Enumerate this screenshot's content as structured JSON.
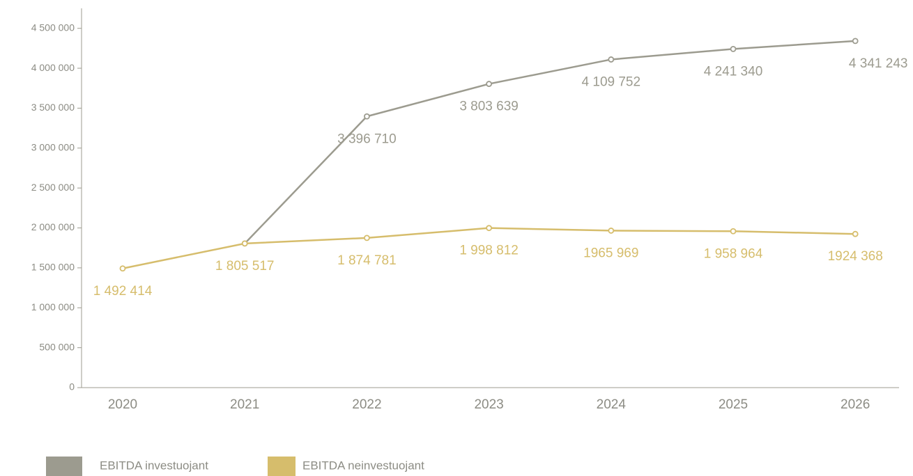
{
  "chart_data": {
    "type": "line",
    "categories": [
      "2020",
      "2021",
      "2022",
      "2023",
      "2024",
      "2025",
      "2026"
    ],
    "series": [
      {
        "name": "EBITDA investuojant",
        "color": "#9c9b8f",
        "values": [
          null,
          1805517,
          3396710,
          3803639,
          4109752,
          4241340,
          4341243
        ],
        "value_labels": [
          null,
          null,
          "3 396 710",
          "3 803 639",
          "4 109 752",
          "4 241 340",
          "4 341 243"
        ]
      },
      {
        "name": "EBITDA neinvestuojant",
        "color": "#d6bd6c",
        "values": [
          1492414,
          1805517,
          1874781,
          1998812,
          1965969,
          1958964,
          1924368
        ],
        "value_labels": [
          "1 492 414",
          "1 805 517",
          "1 874 781",
          "1 998 812",
          "1965 969",
          "1 958 964",
          "1924 368"
        ]
      }
    ],
    "ylim": [
      0,
      4750000
    ],
    "yticks": [
      0,
      {
        "value": 500000,
        "label": "500 000"
      },
      {
        "value": 1000000,
        "label": "1 000 000"
      },
      {
        "value": 1500000,
        "label": "1 500 000"
      },
      {
        "value": 2000000,
        "label": "2 000 000"
      },
      {
        "value": 2500000,
        "label": "2 500 000"
      },
      {
        "value": 3000000,
        "label": "3 000 000"
      },
      {
        "value": 3500000,
        "label": "3 500 000"
      },
      {
        "value": 4000000,
        "label": "4 000 000"
      },
      {
        "value": 4500000,
        "label": "4 500 000"
      }
    ],
    "legend": "bottom-left"
  }
}
